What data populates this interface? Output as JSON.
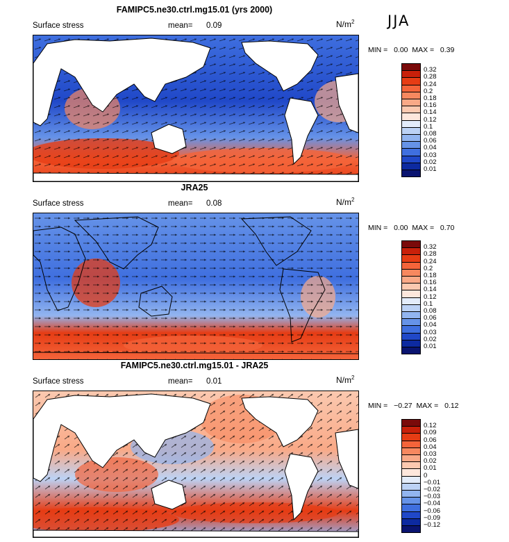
{
  "season": "JJA",
  "unit_base": "N/m",
  "unit_exp": "2",
  "mean_label": "mean=",
  "var_label": "Surface stress",
  "min_label": "MIN =",
  "max_label": "MAX =",
  "chart_data": [
    {
      "type": "heatmap",
      "title": "FAMIPC5.ne30.ctrl.mg15.01 (yrs 2000)",
      "variable": "Surface stress",
      "mean": "0.09",
      "min": "0.00",
      "max": "0.39",
      "levels": [
        "0.32",
        "0.28",
        "0.24",
        "0.2",
        "0.18",
        "0.16",
        "0.14",
        "0.12",
        "0.1",
        "0.08",
        "0.06",
        "0.04",
        "0.03",
        "0.02",
        "0.01"
      ],
      "colors": [
        "#7a0a0a",
        "#c8200a",
        "#e63c14",
        "#f4643a",
        "#f7885f",
        "#f9a987",
        "#fbc9b0",
        "#fde7dc",
        "#e3ecfa",
        "#bcd2f5",
        "#92b5f0",
        "#6693e8",
        "#3f6fdf",
        "#2048c8",
        "#0d2aa0",
        "#0a1470"
      ],
      "style": "sequential"
    },
    {
      "type": "heatmap",
      "title": "JRA25",
      "variable": "Surface stress",
      "mean": "0.08",
      "min": "0.00",
      "max": "0.70",
      "levels": [
        "0.32",
        "0.28",
        "0.24",
        "0.2",
        "0.18",
        "0.16",
        "0.14",
        "0.12",
        "0.1",
        "0.08",
        "0.06",
        "0.04",
        "0.03",
        "0.02",
        "0.01"
      ],
      "colors": [
        "#7a0a0a",
        "#c8200a",
        "#e63c14",
        "#f4643a",
        "#f7885f",
        "#f9a987",
        "#fbc9b0",
        "#fde7dc",
        "#e3ecfa",
        "#bcd2f5",
        "#92b5f0",
        "#6693e8",
        "#3f6fdf",
        "#2048c8",
        "#0d2aa0",
        "#0a1470"
      ],
      "style": "sequential"
    },
    {
      "type": "heatmap",
      "title": "FAMIPC5.ne30.ctrl.mg15.01 - JRA25",
      "variable": "Surface stress",
      "mean": "0.01",
      "min": "−0.27",
      "max": "0.12",
      "levels": [
        "0.12",
        "0.09",
        "0.06",
        "0.04",
        "0.03",
        "0.02",
        "0.01",
        "0",
        "−0.01",
        "−0.02",
        "−0.03",
        "−0.04",
        "−0.06",
        "−0.09",
        "−0.12"
      ],
      "colors": [
        "#7a0a0a",
        "#c8200a",
        "#e63c14",
        "#f4643a",
        "#f7885f",
        "#f9a987",
        "#fbc9b0",
        "#fde7dc",
        "#e3ecfa",
        "#bcd2f5",
        "#92b5f0",
        "#6693e8",
        "#3f6fdf",
        "#2048c8",
        "#0d2aa0",
        "#0a1470"
      ],
      "style": "diverging"
    }
  ]
}
